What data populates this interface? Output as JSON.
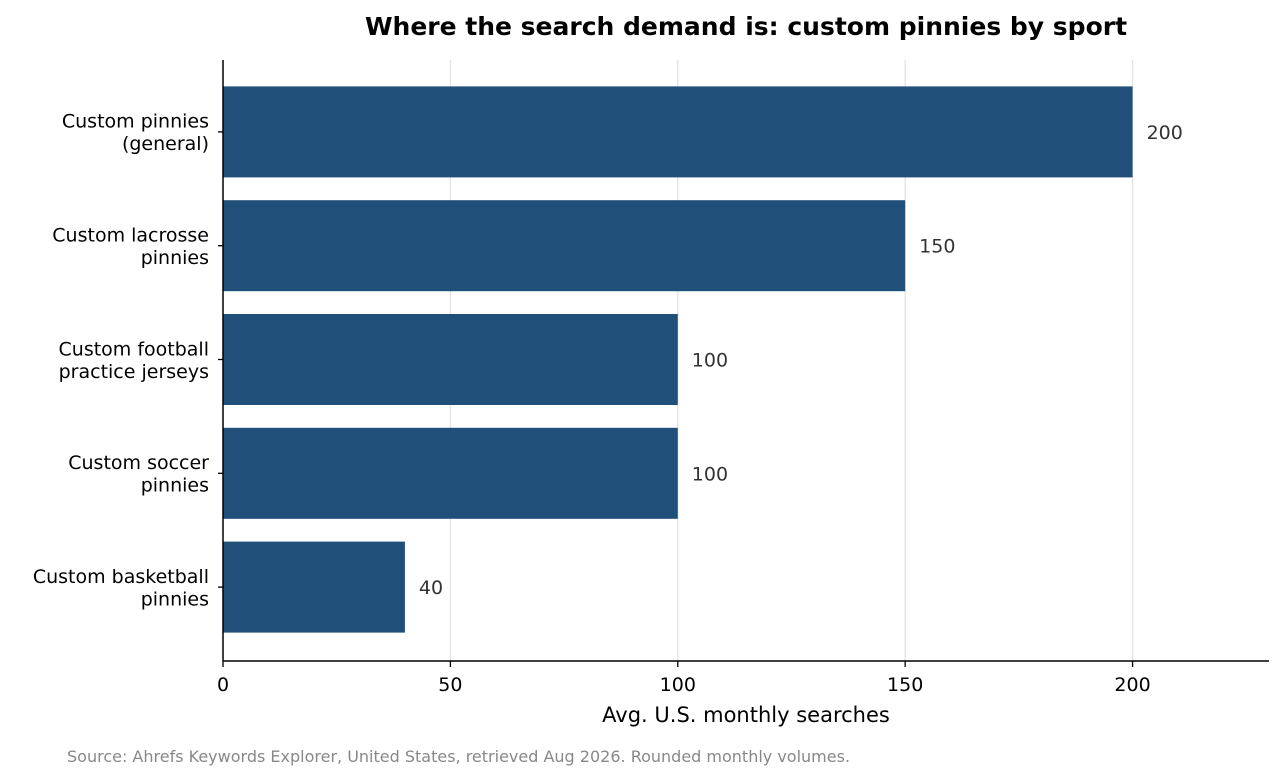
{
  "chart_data": {
    "type": "bar",
    "orientation": "horizontal",
    "title": "Where the search demand is: custom pinnies by sport",
    "xlabel": "Avg. U.S. monthly searches",
    "ylabel": "",
    "categories": [
      [
        "Custom pinnies",
        "(general)"
      ],
      [
        "Custom lacrosse",
        "pinnies"
      ],
      [
        "Custom football",
        "practice jerseys"
      ],
      [
        "Custom soccer",
        "pinnies"
      ],
      [
        "Custom basketball",
        "pinnies"
      ]
    ],
    "values": [
      200,
      150,
      100,
      100,
      40
    ],
    "value_labels": [
      "200",
      "150",
      "100",
      "100",
      "40"
    ],
    "xlim": [
      0,
      230
    ],
    "xticks": [
      0,
      50,
      100,
      150,
      200
    ],
    "xtick_labels": [
      "0",
      "50",
      "100",
      "150",
      "200"
    ],
    "grid": "vertical",
    "bar_color": "#20507a",
    "source": "Source: Ahrefs Keywords Explorer, United States, retrieved Aug 2026. Rounded monthly volumes."
  }
}
